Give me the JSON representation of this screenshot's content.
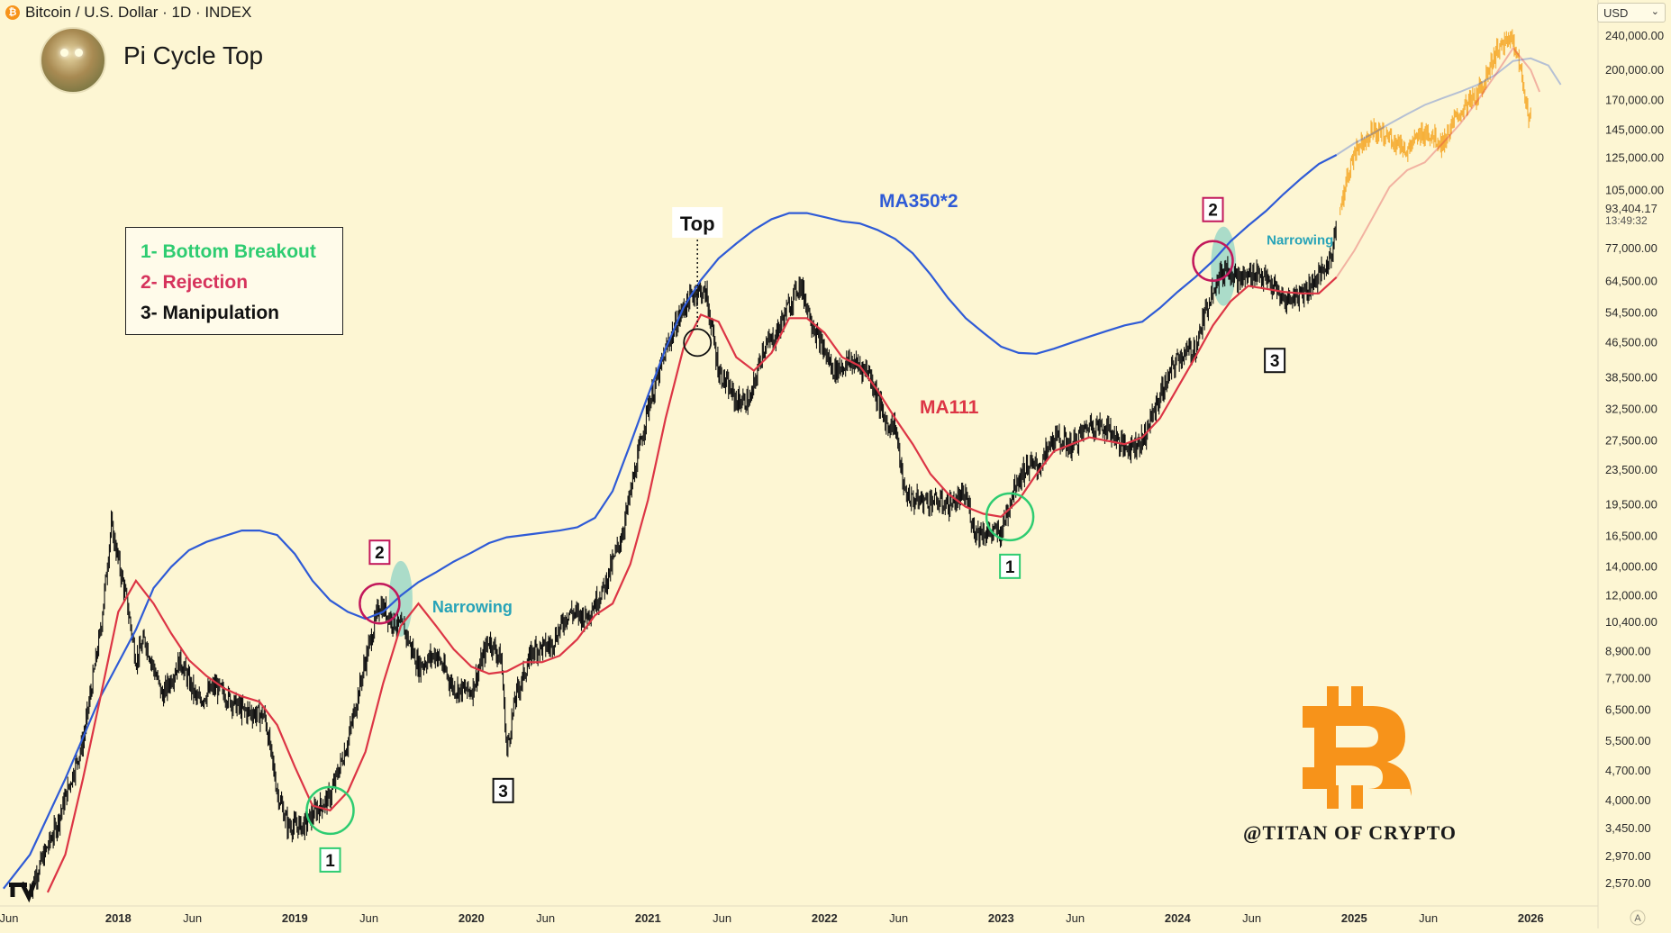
{
  "header": {
    "symbol_icon": "bitcoin-coin-icon",
    "symbol": "Bitcoin / U.S. Dollar · 1D · INDEX",
    "currency": "USD",
    "indicator_title": "Pi Cycle Top",
    "avatar_icon": "author-avatar-icon"
  },
  "legend": {
    "items": [
      {
        "text": "1- Bottom Breakout",
        "color": "#2ecc71"
      },
      {
        "text": "2- Rejection",
        "color": "#d6335c"
      },
      {
        "text": "3- Manipulation",
        "color": "#111111"
      }
    ]
  },
  "watermark": "@TITAN OF CRYPTO",
  "brand_icon": "bitcoin-b-logo-icon",
  "tradingview_logo_icon": "tradingview-logo-icon",
  "auto_scale_label": "A",
  "colors": {
    "background": "#fdf6d3",
    "price": "#111111",
    "ma350x2": "#2f5bd6",
    "ma111": "#dc3545",
    "projection": "#f5a623",
    "bitcoin": "#f7931a",
    "breakout": "#2ecc71",
    "rejection": "#c2185b",
    "narrowing": "#8fd3c5"
  },
  "chart_data": {
    "type": "line",
    "title": "Pi Cycle Top",
    "scale": "log",
    "ylim": [
      2300,
      260000
    ],
    "x_ticks": [
      "Jun",
      "2018",
      "Jun",
      "2019",
      "Jun",
      "2020",
      "Jun",
      "2021",
      "Jun",
      "2022",
      "Jun",
      "2023",
      "Jun",
      "2024",
      "Jun",
      "2025",
      "Jun",
      "2026"
    ],
    "y_ticks": [
      "240,000.00",
      "200,000.00",
      "170,000.00",
      "145,000.00",
      "125,000.00",
      "105,000.00",
      "77,000.00",
      "64,500.00",
      "54,500.00",
      "46,500.00",
      "38,500.00",
      "32,500.00",
      "27,500.00",
      "23,500.00",
      "19,500.00",
      "16,500.00",
      "14,000.00",
      "12,000.00",
      "10,400.00",
      "8,900.00",
      "7,700.00",
      "6,500.00",
      "5,500.00",
      "4,700.00",
      "4,000.00",
      "3,450.00",
      "2,970.00",
      "2,570.00"
    ],
    "last_price": "93,404.17",
    "countdown": "13:49:32",
    "series": [
      {
        "name": "BTC",
        "style": "candles",
        "x": [
          2017.5,
          2017.65,
          2017.8,
          2017.9,
          2017.96,
          2018.05,
          2018.1,
          2018.15,
          2018.25,
          2018.35,
          2018.45,
          2018.55,
          2018.7,
          2018.83,
          2018.9,
          2018.96,
          2019.05,
          2019.12,
          2019.2,
          2019.3,
          2019.4,
          2019.48,
          2019.55,
          2019.62,
          2019.7,
          2019.8,
          2019.9,
          2020.0,
          2020.1,
          2020.17,
          2020.2,
          2020.25,
          2020.35,
          2020.45,
          2020.55,
          2020.65,
          2020.75,
          2020.85,
          2020.95,
          2021.0,
          2021.05,
          2021.12,
          2021.2,
          2021.28,
          2021.33,
          2021.4,
          2021.5,
          2021.58,
          2021.65,
          2021.72,
          2021.8,
          2021.86,
          2021.95,
          2022.05,
          2022.15,
          2022.25,
          2022.35,
          2022.4,
          2022.45,
          2022.5,
          2022.6,
          2022.7,
          2022.8,
          2022.85,
          2022.92,
          2023.0,
          2023.08,
          2023.15,
          2023.22,
          2023.3,
          2023.4,
          2023.5,
          2023.6,
          2023.7,
          2023.8,
          2023.9,
          2024.0,
          2024.1,
          2024.2,
          2024.28,
          2024.35,
          2024.45,
          2024.55,
          2024.6,
          2024.68,
          2024.75,
          2024.82,
          2024.87,
          2024.9
        ],
        "values": [
          2500,
          3500,
          5500,
          10000,
          17500,
          11500,
          8500,
          9500,
          7000,
          8500,
          6800,
          7400,
          6500,
          6300,
          4200,
          3500,
          3500,
          3800,
          4100,
          5500,
          8500,
          11500,
          10500,
          10000,
          8200,
          8800,
          7300,
          7200,
          9500,
          8500,
          5200,
          7000,
          9000,
          9200,
          11000,
          10700,
          12500,
          16500,
          26000,
          33000,
          38000,
          47000,
          56000,
          62000,
          60000,
          40000,
          34000,
          34000,
          45000,
          48000,
          57000,
          64000,
          49000,
          40000,
          42000,
          40000,
          30000,
          30000,
          21000,
          20000,
          20000,
          19500,
          20500,
          17000,
          16800,
          16800,
          22000,
          24000,
          24000,
          28000,
          26800,
          30000,
          29500,
          26500,
          27500,
          35000,
          43000,
          45000,
          63000,
          70000,
          65000,
          68000,
          62000,
          58000,
          60000,
          63000,
          68000,
          73000,
          93404
        ]
      },
      {
        "name": "MA350*2",
        "x": [
          2017.35,
          2017.5,
          2017.7,
          2017.9,
          2018.1,
          2018.2,
          2018.3,
          2018.4,
          2018.5,
          2018.6,
          2018.7,
          2018.8,
          2018.9,
          2019.0,
          2019.1,
          2019.2,
          2019.3,
          2019.4,
          2019.5,
          2019.6,
          2019.7,
          2019.8,
          2019.9,
          2020.0,
          2020.1,
          2020.2,
          2020.3,
          2020.4,
          2020.5,
          2020.6,
          2020.7,
          2020.8,
          2020.9,
          2021.0,
          2021.1,
          2021.2,
          2021.3,
          2021.4,
          2021.5,
          2021.6,
          2021.7,
          2021.8,
          2021.9,
          2022.0,
          2022.1,
          2022.2,
          2022.3,
          2022.4,
          2022.5,
          2022.6,
          2022.7,
          2022.8,
          2022.9,
          2023.0,
          2023.1,
          2023.2,
          2023.3,
          2023.4,
          2023.5,
          2023.6,
          2023.7,
          2023.8,
          2023.9,
          2024.0,
          2024.1,
          2024.2,
          2024.3,
          2024.4,
          2024.5,
          2024.6,
          2024.7,
          2024.8,
          2024.9,
          2025.0,
          2025.1,
          2025.2,
          2025.3,
          2025.4,
          2025.5,
          2025.6,
          2025.7,
          2025.8,
          2025.9,
          2026.0,
          2026.1,
          2026.17
        ],
        "values": [
          2500,
          3000,
          4500,
          7000,
          10000,
          12500,
          14000,
          15300,
          16000,
          16500,
          17000,
          17000,
          16600,
          15000,
          13000,
          11700,
          11000,
          10600,
          11000,
          12000,
          12900,
          13600,
          14400,
          15100,
          15900,
          16400,
          16600,
          16800,
          17000,
          17300,
          18200,
          21000,
          27000,
          35000,
          45000,
          56000,
          65000,
          73000,
          79000,
          85000,
          90000,
          93000,
          93000,
          91000,
          89000,
          88000,
          85000,
          81000,
          75000,
          67000,
          59000,
          53000,
          49000,
          45500,
          44000,
          43800,
          45000,
          46500,
          48000,
          49500,
          51000,
          52000,
          56000,
          61000,
          66000,
          72000,
          80000,
          87000,
          94000,
          103000,
          112000,
          121000,
          127000,
          135000,
          142000,
          150000,
          158000,
          166000,
          172000,
          178000,
          185000,
          195000,
          210000,
          213000,
          205000,
          185000
        ]
      },
      {
        "name": "MA111",
        "x": [
          2017.6,
          2017.7,
          2017.8,
          2017.9,
          2018.0,
          2018.1,
          2018.2,
          2018.3,
          2018.4,
          2018.5,
          2018.6,
          2018.7,
          2018.8,
          2018.9,
          2019.0,
          2019.1,
          2019.2,
          2019.3,
          2019.4,
          2019.5,
          2019.6,
          2019.7,
          2019.8,
          2019.9,
          2020.0,
          2020.1,
          2020.2,
          2020.3,
          2020.4,
          2020.5,
          2020.6,
          2020.7,
          2020.8,
          2020.9,
          2021.0,
          2021.1,
          2021.2,
          2021.3,
          2021.4,
          2021.5,
          2021.6,
          2021.7,
          2021.8,
          2021.9,
          2022.0,
          2022.1,
          2022.2,
          2022.3,
          2022.4,
          2022.5,
          2022.6,
          2022.7,
          2022.8,
          2022.9,
          2023.0,
          2023.1,
          2023.2,
          2023.3,
          2023.4,
          2023.5,
          2023.6,
          2023.7,
          2023.8,
          2023.9,
          2024.0,
          2024.1,
          2024.2,
          2024.3,
          2024.4,
          2024.5,
          2024.6,
          2024.7,
          2024.8,
          2024.9,
          2025.0,
          2025.1,
          2025.2,
          2025.3,
          2025.4,
          2025.5,
          2025.6,
          2025.7,
          2025.8,
          2025.9,
          2026.0,
          2026.05
        ],
        "values": [
          2450,
          3000,
          4500,
          7000,
          11000,
          13000,
          11500,
          9800,
          8500,
          7800,
          7300,
          7000,
          6800,
          6000,
          4800,
          3900,
          3800,
          4200,
          5200,
          7500,
          10200,
          11500,
          10200,
          9000,
          8200,
          7900,
          8000,
          8400,
          8400,
          8700,
          9500,
          10800,
          11500,
          14200,
          20000,
          31000,
          45000,
          54000,
          52000,
          43000,
          40000,
          44000,
          53000,
          53000,
          49000,
          43000,
          41000,
          36000,
          31000,
          27000,
          23000,
          20700,
          19300,
          18600,
          18300,
          20000,
          23000,
          26000,
          27000,
          28000,
          27500,
          27000,
          28000,
          31000,
          36500,
          43000,
          51000,
          58000,
          63000,
          62000,
          61000,
          60500,
          60500,
          66000,
          76000,
          90000,
          107000,
          117000,
          122000,
          135000,
          150000,
          170000,
          195000,
          225000,
          200000,
          178000
        ]
      },
      {
        "name": "Projection",
        "style": "fractal",
        "x": [
          2024.92,
          2025.0,
          2025.1,
          2025.2,
          2025.3,
          2025.4,
          2025.5,
          2025.6,
          2025.7,
          2025.8,
          2025.9,
          2026.0
        ],
        "values": [
          95000,
          130000,
          145000,
          140000,
          130000,
          145000,
          135000,
          160000,
          175000,
          220000,
          240000,
          150000
        ]
      }
    ],
    "annotations": [
      {
        "label": "1",
        "kind": "bottom-breakout",
        "x": 2019.2,
        "y": 3800
      },
      {
        "label": "2",
        "kind": "rejection",
        "x": 2019.48,
        "y": 11500
      },
      {
        "label": "Narrowing",
        "x": 2019.6,
        "y": 11500
      },
      {
        "label": "3",
        "kind": "manipulation",
        "x": 2020.18,
        "y": 5200
      },
      {
        "label": "Top",
        "x": 2021.28,
        "y": 62000
      },
      {
        "label": "MA350*2",
        "x": 2022.0,
        "y": 93000
      },
      {
        "label": "MA111",
        "x": 2022.55,
        "y": 31000
      },
      {
        "label": "1",
        "kind": "bottom-breakout",
        "x": 2023.05,
        "y": 18300
      },
      {
        "label": "2",
        "kind": "rejection",
        "x": 2024.2,
        "y": 72000
      },
      {
        "label": "Narrowing",
        "x": 2024.3,
        "y": 72000
      },
      {
        "label": "3",
        "kind": "manipulation",
        "x": 2024.55,
        "y": 52000
      }
    ]
  }
}
